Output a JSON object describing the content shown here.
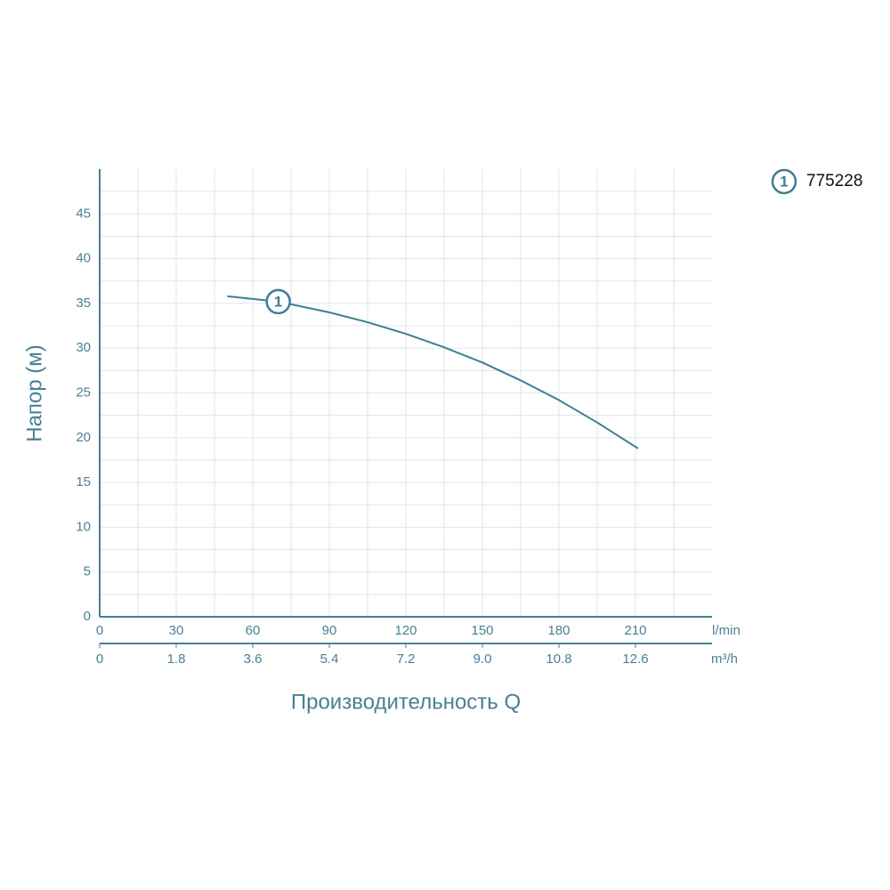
{
  "chart_data": {
    "type": "line",
    "ylabel": "Напор (м)",
    "xlabel": "Производительность Q",
    "x": [
      50,
      70,
      90,
      105,
      120,
      135,
      150,
      165,
      180,
      195,
      211
    ],
    "series": [
      {
        "name": "775228",
        "label": "1",
        "color": "#3f7e93",
        "values": [
          35.8,
          35.2,
          34.0,
          32.9,
          31.6,
          30.1,
          28.4,
          26.4,
          24.2,
          21.7,
          18.8
        ]
      }
    ],
    "xlim": [
      0,
      240
    ],
    "xticks": [
      0,
      30,
      60,
      90,
      120,
      150,
      180,
      210
    ],
    "xminor": [
      15,
      45,
      75,
      105,
      135,
      165,
      195,
      225
    ],
    "xunit": "l/min",
    "x2lim": [
      0,
      14.4
    ],
    "x2ticks": [
      0,
      1.8,
      3.6,
      5.4,
      7.2,
      {
        "value": 9,
        "label": "9.0"
      },
      10.8,
      12.6
    ],
    "x2unit": "m³/h",
    "ylim": [
      0,
      50
    ],
    "yticks": [
      0,
      5,
      10,
      15,
      20,
      25,
      30,
      35,
      40,
      45
    ],
    "yminor": [
      2.5,
      7.5,
      12.5,
      17.5,
      22.5,
      27.5,
      32.5,
      37.5,
      42.5,
      47.5
    ],
    "grid": true,
    "legend": "top-right"
  }
}
